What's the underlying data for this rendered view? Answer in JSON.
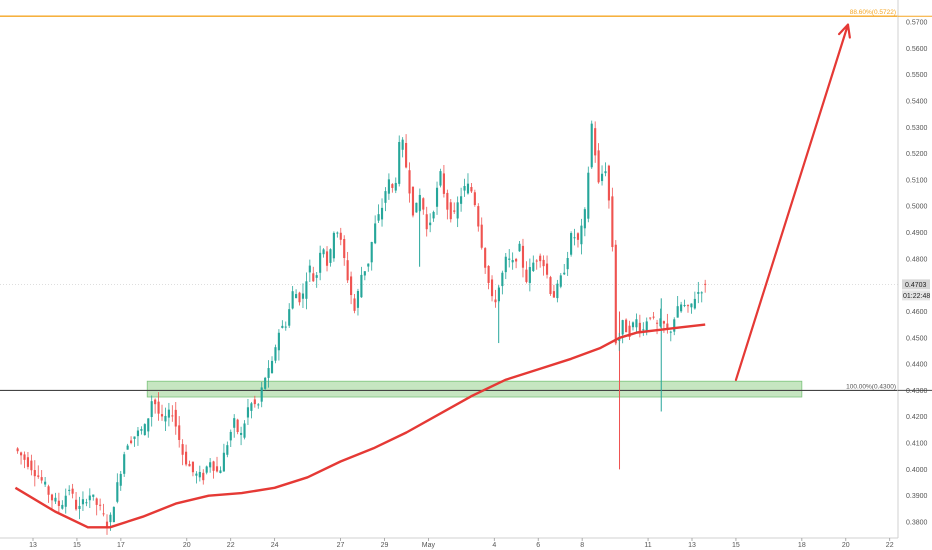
{
  "chart_data": {
    "type": "candlestick",
    "title": "",
    "xlabel": "",
    "ylabel": "",
    "ylim": [
      0.375,
      0.577
    ],
    "y_ticks": [
      "0.3800",
      "0.3900",
      "0.4000",
      "0.4100",
      "0.4200",
      "0.4300",
      "0.4400",
      "0.4500",
      "0.4600",
      "0.4700",
      "0.4800",
      "0.4900",
      "0.5000",
      "0.5100",
      "0.5200",
      "0.5300",
      "0.5400",
      "0.5500",
      "0.5600",
      "0.5700"
    ],
    "x_ticks": [
      {
        "label": "13",
        "day": 13
      },
      {
        "label": "15",
        "day": 15
      },
      {
        "label": "17",
        "day": 17
      },
      {
        "label": "20",
        "day": 20
      },
      {
        "label": "22",
        "day": 22
      },
      {
        "label": "24",
        "day": 24
      },
      {
        "label": "27",
        "day": 27
      },
      {
        "label": "29",
        "day": 29
      },
      {
        "label": "May",
        "day": 31
      },
      {
        "label": "4",
        "day": 34
      },
      {
        "label": "6",
        "day": 36
      },
      {
        "label": "8",
        "day": 38
      },
      {
        "label": "11",
        "day": 41
      },
      {
        "label": "13",
        "day": 43
      },
      {
        "label": "15",
        "day": 45
      },
      {
        "label": "18",
        "day": 48
      },
      {
        "label": "20",
        "day": 50
      },
      {
        "label": "22",
        "day": 52
      }
    ],
    "x_range_days": [
      12.5,
      52.5
    ],
    "price_path": [
      [
        12.3,
        0.408
      ],
      [
        13.0,
        0.402
      ],
      [
        13.6,
        0.395
      ],
      [
        14.0,
        0.389
      ],
      [
        14.4,
        0.386
      ],
      [
        14.8,
        0.393
      ],
      [
        15.2,
        0.384
      ],
      [
        15.7,
        0.391
      ],
      [
        16.2,
        0.385
      ],
      [
        16.6,
        0.378
      ],
      [
        17.0,
        0.394
      ],
      [
        17.4,
        0.41
      ],
      [
        17.8,
        0.413
      ],
      [
        18.3,
        0.416
      ],
      [
        18.6,
        0.428
      ],
      [
        19.0,
        0.418
      ],
      [
        19.5,
        0.422
      ],
      [
        20.0,
        0.405
      ],
      [
        20.5,
        0.398
      ],
      [
        20.9,
        0.397
      ],
      [
        21.2,
        0.404
      ],
      [
        21.6,
        0.398
      ],
      [
        22.0,
        0.41
      ],
      [
        22.3,
        0.418
      ],
      [
        22.6,
        0.412
      ],
      [
        23.0,
        0.425
      ],
      [
        23.4,
        0.424
      ],
      [
        23.7,
        0.435
      ],
      [
        24.0,
        0.438
      ],
      [
        24.3,
        0.452
      ],
      [
        24.7,
        0.456
      ],
      [
        25.0,
        0.468
      ],
      [
        25.4,
        0.464
      ],
      [
        25.7,
        0.478
      ],
      [
        26.0,
        0.47
      ],
      [
        26.3,
        0.488
      ],
      [
        26.6,
        0.476
      ],
      [
        26.9,
        0.494
      ],
      [
        27.2,
        0.485
      ],
      [
        27.5,
        0.472
      ],
      [
        27.8,
        0.46
      ],
      [
        28.1,
        0.474
      ],
      [
        28.4,
        0.478
      ],
      [
        28.7,
        0.492
      ],
      [
        29.0,
        0.498
      ],
      [
        29.3,
        0.51
      ],
      [
        29.6,
        0.505
      ],
      [
        29.9,
        0.528
      ],
      [
        30.2,
        0.512
      ],
      [
        30.5,
        0.496
      ],
      [
        30.8,
        0.505
      ],
      [
        31.1,
        0.49
      ],
      [
        31.4,
        0.5
      ],
      [
        31.7,
        0.512
      ],
      [
        32.0,
        0.5
      ],
      [
        32.3,
        0.495
      ],
      [
        32.6,
        0.504
      ],
      [
        32.9,
        0.508
      ],
      [
        33.2,
        0.505
      ],
      [
        33.5,
        0.49
      ],
      [
        33.8,
        0.475
      ],
      [
        34.1,
        0.462
      ],
      [
        34.4,
        0.47
      ],
      [
        34.7,
        0.48
      ],
      [
        35.0,
        0.478
      ],
      [
        35.3,
        0.484
      ],
      [
        35.6,
        0.472
      ],
      [
        35.9,
        0.478
      ],
      [
        36.2,
        0.482
      ],
      [
        36.5,
        0.476
      ],
      [
        36.8,
        0.465
      ],
      [
        37.1,
        0.47
      ],
      [
        37.4,
        0.478
      ],
      [
        37.7,
        0.49
      ],
      [
        38.0,
        0.486
      ],
      [
        38.3,
        0.498
      ],
      [
        38.6,
        0.532
      ],
      [
        38.9,
        0.508
      ],
      [
        39.2,
        0.516
      ],
      [
        39.5,
        0.492
      ],
      [
        39.7,
        0.446
      ],
      [
        40.0,
        0.455
      ],
      [
        40.3,
        0.452
      ],
      [
        40.6,
        0.457
      ],
      [
        40.9,
        0.452
      ],
      [
        41.2,
        0.46
      ],
      [
        41.5,
        0.454
      ],
      [
        41.8,
        0.456
      ],
      [
        42.1,
        0.451
      ],
      [
        42.4,
        0.459
      ],
      [
        42.7,
        0.463
      ],
      [
        43.0,
        0.46
      ],
      [
        43.3,
        0.466
      ],
      [
        43.6,
        0.469
      ]
    ],
    "moving_average": {
      "color": "#e53935",
      "points": [
        [
          12.2,
          0.393
        ],
        [
          14.0,
          0.384
        ],
        [
          15.5,
          0.378
        ],
        [
          16.5,
          0.378
        ],
        [
          18.0,
          0.382
        ],
        [
          19.5,
          0.387
        ],
        [
          21.0,
          0.39
        ],
        [
          22.5,
          0.391
        ],
        [
          24.0,
          0.393
        ],
        [
          25.5,
          0.397
        ],
        [
          27.0,
          0.403
        ],
        [
          28.5,
          0.408
        ],
        [
          30.0,
          0.414
        ],
        [
          31.5,
          0.421
        ],
        [
          33.0,
          0.428
        ],
        [
          34.5,
          0.434
        ],
        [
          36.0,
          0.438
        ],
        [
          37.5,
          0.442
        ],
        [
          38.8,
          0.446
        ],
        [
          39.7,
          0.45
        ],
        [
          40.5,
          0.452
        ],
        [
          41.5,
          0.453
        ],
        [
          42.5,
          0.454
        ],
        [
          43.6,
          0.455
        ]
      ]
    },
    "wicks": [
      {
        "day": 39.7,
        "high": 0.46,
        "low": 0.4
      },
      {
        "day": 41.6,
        "high": 0.465,
        "low": 0.422
      },
      {
        "day": 30.6,
        "high": 0.5,
        "low": 0.477
      },
      {
        "day": 34.2,
        "high": 0.47,
        "low": 0.448
      }
    ],
    "horizontal_levels": [
      {
        "value": 0.5722,
        "label": "88.60%(0.5722)",
        "color": "#f5a623"
      },
      {
        "value": 0.43,
        "label": "100.00%(0.4300)",
        "color": "#444444"
      }
    ],
    "support_zone": {
      "low": 0.4275,
      "high": 0.4335,
      "day_start": 18.2,
      "day_end": 48.0,
      "color": "#a8d8a0"
    },
    "forecast_arrow": {
      "from": [
        45.0,
        0.434
      ],
      "to": [
        50.1,
        0.569
      ],
      "color": "#e53935"
    },
    "current_price": {
      "value": "0.4703",
      "countdown": "01:22:48"
    },
    "colors": {
      "up": "#26a69a",
      "down": "#ef5350"
    }
  }
}
